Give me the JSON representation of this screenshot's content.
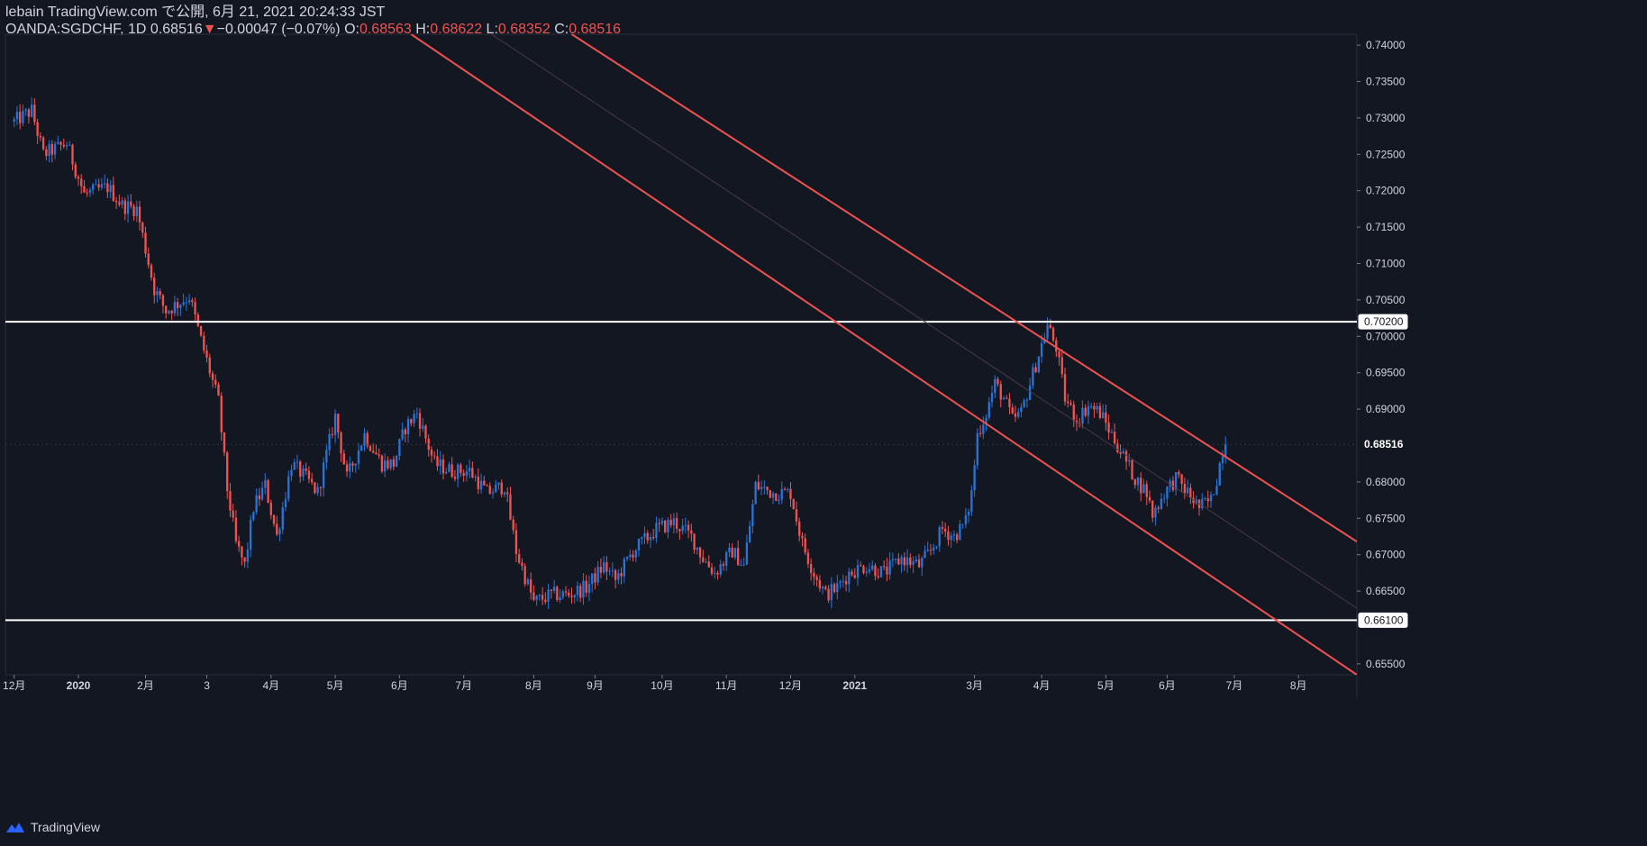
{
  "header": {
    "publisher_line": "lebain TradingView.com で公開, 6月 21, 2021 20:24:33 JST",
    "symbol": "OANDA:SGDCHF, 1D",
    "last": "0.68516",
    "change_arrow": "▼",
    "change": "−0.00047 (−0.07%)",
    "o_label": "O:",
    "o_value": "0.68563",
    "h_label": "H:",
    "h_value": "0.68622",
    "l_label": "L:",
    "l_value": "0.68352",
    "c_label": "C:",
    "c_value": "0.68516"
  },
  "footer": {
    "brand": "TradingView",
    "logo_icon": "tradingview-logo-icon"
  },
  "colors": {
    "background": "#131722",
    "up": "#2a73d6",
    "down": "#ef5350",
    "trendline": "#f0524f",
    "level_line": "#ffffff",
    "axis_text": "#d1d4dc"
  },
  "chart_data": {
    "type": "candlestick",
    "symbol": "OANDA:SGDCHF",
    "interval": "1D",
    "ylim": [
      0.6535,
      0.7415
    ],
    "y_ticks": [
      "0.74000",
      "0.73500",
      "0.73000",
      "0.72500",
      "0.72000",
      "0.71500",
      "0.71000",
      "0.70500",
      "0.70000",
      "0.69500",
      "0.69000",
      "0.68000",
      "0.67500",
      "0.67000",
      "0.66500",
      "0.65500"
    ],
    "price_labels": [
      {
        "value": 0.702,
        "text": "0.70200",
        "style": "level"
      },
      {
        "value": 0.68516,
        "text": "0.68516",
        "style": "last"
      },
      {
        "value": 0.661,
        "text": "0.66100",
        "style": "level"
      }
    ],
    "x_ticks": [
      {
        "label": "12月",
        "day": 0
      },
      {
        "label": "2020",
        "day": 22
      },
      {
        "label": "2月",
        "day": 45
      },
      {
        "label": "3",
        "day": 66
      },
      {
        "label": "4月",
        "day": 88
      },
      {
        "label": "5月",
        "day": 110
      },
      {
        "label": "6月",
        "day": 132
      },
      {
        "label": "7月",
        "day": 154
      },
      {
        "label": "8月",
        "day": 178
      },
      {
        "label": "9月",
        "day": 199
      },
      {
        "label": "10月",
        "day": 222
      },
      {
        "label": "11月",
        "day": 244
      },
      {
        "label": "12月",
        "day": 266
      },
      {
        "label": "2021",
        "day": 288
      },
      {
        "label": "3月",
        "day": 329
      },
      {
        "label": "4月",
        "day": 352
      },
      {
        "label": "5月",
        "day": 374
      },
      {
        "label": "6月",
        "day": 395
      },
      {
        "label": "7月",
        "day": 418
      },
      {
        "label": "8月",
        "day": 440
      }
    ],
    "x_range": [
      -3,
      460
    ],
    "anchors": [
      [
        0,
        0.7295
      ],
      [
        6,
        0.731
      ],
      [
        10,
        0.725
      ],
      [
        18,
        0.7265
      ],
      [
        24,
        0.7195
      ],
      [
        32,
        0.7205
      ],
      [
        37,
        0.718
      ],
      [
        42,
        0.7175
      ],
      [
        48,
        0.7065
      ],
      [
        52,
        0.7035
      ],
      [
        60,
        0.7055
      ],
      [
        64,
        0.6995
      ],
      [
        70,
        0.691
      ],
      [
        73,
        0.679
      ],
      [
        76,
        0.6715
      ],
      [
        79,
        0.6685
      ],
      [
        82,
        0.6765
      ],
      [
        86,
        0.6795
      ],
      [
        90,
        0.6725
      ],
      [
        95,
        0.6825
      ],
      [
        100,
        0.6805
      ],
      [
        104,
        0.6785
      ],
      [
        110,
        0.689
      ],
      [
        114,
        0.6805
      ],
      [
        120,
        0.6865
      ],
      [
        126,
        0.6825
      ],
      [
        130,
        0.6825
      ],
      [
        134,
        0.6875
      ],
      [
        138,
        0.6895
      ],
      [
        144,
        0.6825
      ],
      [
        150,
        0.6815
      ],
      [
        156,
        0.6815
      ],
      [
        162,
        0.6785
      ],
      [
        168,
        0.6795
      ],
      [
        172,
        0.6705
      ],
      [
        178,
        0.6635
      ],
      [
        184,
        0.6645
      ],
      [
        190,
        0.6645
      ],
      [
        196,
        0.6655
      ],
      [
        202,
        0.6685
      ],
      [
        206,
        0.6665
      ],
      [
        212,
        0.6705
      ],
      [
        220,
        0.6735
      ],
      [
        226,
        0.6745
      ],
      [
        232,
        0.6725
      ],
      [
        236,
        0.6695
      ],
      [
        240,
        0.6675
      ],
      [
        246,
        0.6705
      ],
      [
        250,
        0.6685
      ],
      [
        254,
        0.6795
      ],
      [
        260,
        0.6785
      ],
      [
        266,
        0.6785
      ],
      [
        270,
        0.6715
      ],
      [
        274,
        0.6675
      ],
      [
        278,
        0.6645
      ],
      [
        282,
        0.6655
      ],
      [
        286,
        0.6675
      ],
      [
        292,
        0.6685
      ],
      [
        298,
        0.6675
      ],
      [
        304,
        0.6695
      ],
      [
        310,
        0.6685
      ],
      [
        314,
        0.6705
      ],
      [
        318,
        0.6735
      ],
      [
        322,
        0.6725
      ],
      [
        326,
        0.6745
      ],
      [
        328,
        0.6785
      ],
      [
        330,
        0.6865
      ],
      [
        333,
        0.6895
      ],
      [
        336,
        0.6935
      ],
      [
        339,
        0.6915
      ],
      [
        342,
        0.6885
      ],
      [
        345,
        0.6895
      ],
      [
        348,
        0.6935
      ],
      [
        351,
        0.6975
      ],
      [
        354,
        0.7015
      ],
      [
        357,
        0.6985
      ],
      [
        360,
        0.6915
      ],
      [
        364,
        0.6885
      ],
      [
        368,
        0.6905
      ],
      [
        372,
        0.6895
      ],
      [
        376,
        0.6865
      ],
      [
        380,
        0.6835
      ],
      [
        384,
        0.6805
      ],
      [
        388,
        0.6785
      ],
      [
        390,
        0.6755
      ],
      [
        394,
        0.6785
      ],
      [
        398,
        0.6805
      ],
      [
        402,
        0.6785
      ],
      [
        406,
        0.6765
      ],
      [
        410,
        0.6775
      ],
      [
        412,
        0.6805
      ],
      [
        414,
        0.6845
      ],
      [
        415,
        0.68516
      ]
    ],
    "levels": [
      {
        "value": 0.702,
        "color": "white"
      },
      {
        "value": 0.661,
        "color": "white"
      }
    ],
    "trendlines": [
      {
        "name": "",
        "role": "upper",
        "from": [
          191,
          0.7415
        ],
        "to": [
          460,
          0.6718
        ]
      },
      {
        "name": "",
        "role": "lower",
        "from": [
          136,
          0.7415
        ],
        "to": [
          460,
          0.6535
        ]
      }
    ],
    "grid": false
  }
}
